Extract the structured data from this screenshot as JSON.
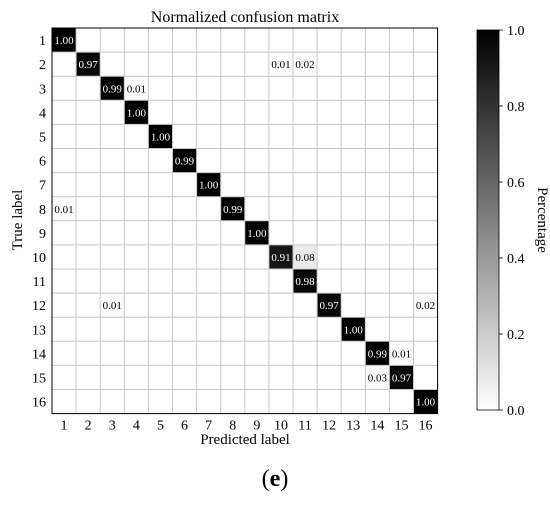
{
  "panel": {
    "open": "(",
    "letter": "e",
    "close": ")"
  },
  "chart_data": {
    "type": "heatmap",
    "title": "Normalized confusion matrix",
    "xlabel": "Predicted label",
    "ylabel": "True label",
    "labels": [
      "1",
      "2",
      "3",
      "4",
      "5",
      "6",
      "7",
      "8",
      "9",
      "10",
      "11",
      "12",
      "13",
      "14",
      "15",
      "16"
    ],
    "cells": [
      {
        "t": 1,
        "p": 1,
        "v": 1.0
      },
      {
        "t": 2,
        "p": 2,
        "v": 0.97
      },
      {
        "t": 2,
        "p": 10,
        "v": 0.01
      },
      {
        "t": 2,
        "p": 11,
        "v": 0.02
      },
      {
        "t": 3,
        "p": 3,
        "v": 0.99
      },
      {
        "t": 3,
        "p": 4,
        "v": 0.01
      },
      {
        "t": 4,
        "p": 4,
        "v": 1.0
      },
      {
        "t": 5,
        "p": 5,
        "v": 1.0
      },
      {
        "t": 6,
        "p": 6,
        "v": 0.99
      },
      {
        "t": 7,
        "p": 7,
        "v": 1.0
      },
      {
        "t": 8,
        "p": 1,
        "v": 0.01
      },
      {
        "t": 8,
        "p": 8,
        "v": 0.99
      },
      {
        "t": 9,
        "p": 9,
        "v": 1.0
      },
      {
        "t": 10,
        "p": 10,
        "v": 0.91
      },
      {
        "t": 10,
        "p": 11,
        "v": 0.08
      },
      {
        "t": 11,
        "p": 11,
        "v": 0.98
      },
      {
        "t": 12,
        "p": 3,
        "v": 0.01
      },
      {
        "t": 12,
        "p": 12,
        "v": 0.97
      },
      {
        "t": 12,
        "p": 16,
        "v": 0.02
      },
      {
        "t": 13,
        "p": 13,
        "v": 1.0
      },
      {
        "t": 14,
        "p": 14,
        "v": 0.99
      },
      {
        "t": 14,
        "p": 15,
        "v": 0.01
      },
      {
        "t": 15,
        "p": 14,
        "v": 0.03
      },
      {
        "t": 15,
        "p": 15,
        "v": 0.97
      },
      {
        "t": 16,
        "p": 16,
        "v": 1.0
      }
    ],
    "colorbar": {
      "label": "Percentage",
      "range": [
        0,
        1
      ],
      "ticks": [
        "0.0",
        "0.2",
        "0.4",
        "0.6",
        "0.8",
        "1.0"
      ],
      "colormap": [
        "#ffffff",
        "#000000"
      ]
    },
    "grid": true
  }
}
